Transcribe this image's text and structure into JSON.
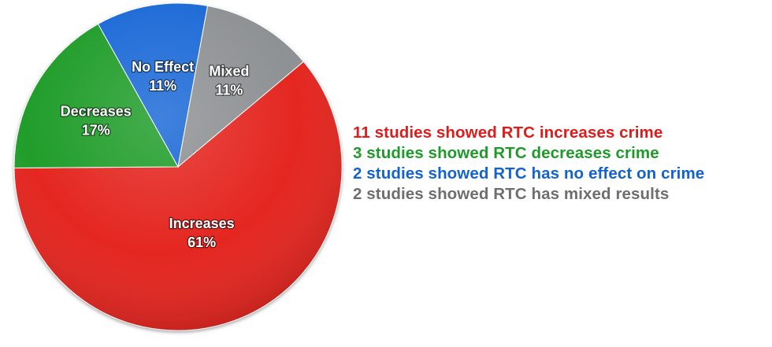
{
  "chart_data": {
    "type": "pie",
    "slices": [
      {
        "key": "increases",
        "label": "Increases",
        "value": 61,
        "value_label": "61%",
        "color": "#e4201c"
      },
      {
        "key": "decreases",
        "label": "Decreases",
        "value": 17,
        "value_label": "17%",
        "color": "#1a9b25"
      },
      {
        "key": "no_effect",
        "label": "No Effect",
        "value": 11,
        "value_label": "11%",
        "color": "#1466d6"
      },
      {
        "key": "mixed",
        "label": "Mixed",
        "value": 11,
        "value_label": "11%",
        "color": "#8c8f91"
      }
    ]
  },
  "legend": {
    "items": [
      {
        "text": "11 studies showed RTC increases crime",
        "color": "#e01b1b"
      },
      {
        "text": "3 studies showed RTC decreases crime",
        "color": "#1f9a2a"
      },
      {
        "text": "2 studies showed RTC has no effect on crime",
        "color": "#1462d0"
      },
      {
        "text": "2 studies showed RTC has mixed results",
        "color": "#6e6e6e"
      }
    ]
  }
}
